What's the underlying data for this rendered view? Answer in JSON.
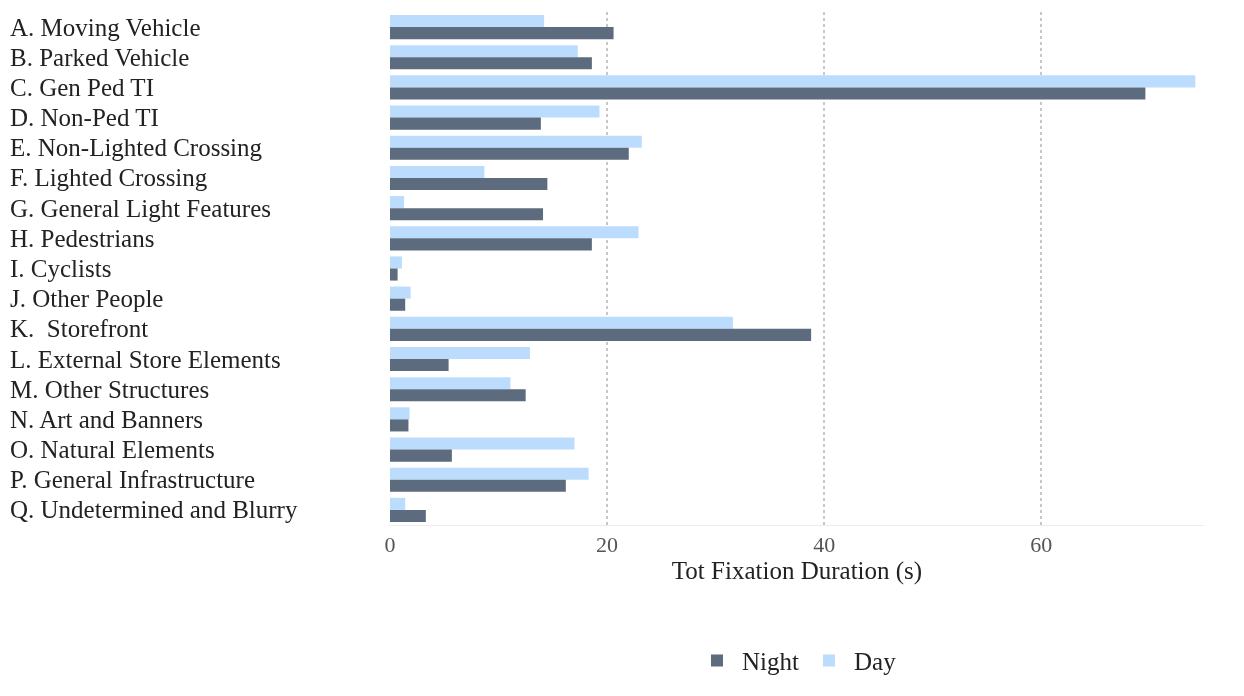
{
  "chart_data": {
    "type": "bar",
    "orientation": "horizontal",
    "xlabel": "Tot Fixation Duration (s)",
    "categories": [
      "A. Moving Vehicle",
      "B. Parked Vehicle",
      "C. Gen Ped TI",
      "D. Non-Ped TI",
      "E. Non-Lighted Crossing",
      "F. Lighted Crossing",
      "G. General Light Features",
      "H. Pedestrians",
      "I. Cyclists",
      "J. Other People",
      "K.  Storefront",
      "L. External Store Elements",
      "M. Other Structures",
      "N. Art and Banners",
      "O. Natural Elements",
      "P. General Infrastructure",
      "Q. Undetermined and Blurry"
    ],
    "series": [
      {
        "name": "Day",
        "color": "#bcdcfd",
        "values": [
          14.2,
          17.3,
          74.2,
          19.3,
          23.2,
          8.7,
          1.3,
          22.9,
          1.1,
          1.9,
          31.6,
          12.9,
          11.1,
          1.8,
          17.0,
          18.3,
          1.4
        ]
      },
      {
        "name": "Night",
        "color": "#5c6b7d",
        "values": [
          20.6,
          18.6,
          69.6,
          13.9,
          22.0,
          14.5,
          14.1,
          18.6,
          0.7,
          1.4,
          38.8,
          5.4,
          12.5,
          1.7,
          5.7,
          16.2,
          3.3
        ]
      }
    ],
    "xlim": [
      0,
      75
    ],
    "xticks": [
      0,
      20,
      40,
      60
    ],
    "grid": "x",
    "legend": "bottom"
  }
}
